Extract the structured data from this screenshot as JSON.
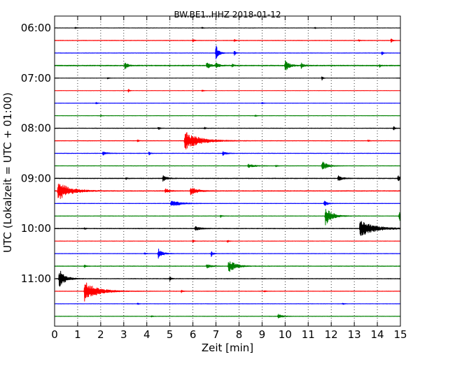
{
  "chart_data": {
    "type": "line",
    "title": "BW.BE1..HHZ 2018-01-12",
    "xlabel": "Zeit  [min]",
    "ylabel": "UTC (Lokalzeit = UTC + 01:00)",
    "xlim": [
      0,
      15
    ],
    "x_ticks": [
      0,
      1,
      2,
      3,
      4,
      5,
      6,
      7,
      8,
      9,
      10,
      11,
      12,
      13,
      14,
      15
    ],
    "x_tick_labels": [
      "0",
      "1",
      "2",
      "3",
      "4",
      "5",
      "6",
      "7",
      "8",
      "9",
      "10",
      "11",
      "12",
      "13",
      "14",
      "15"
    ],
    "y_tick_labels": [
      {
        "row": 0,
        "label": "06:00"
      },
      {
        "row": 4,
        "label": "07:00"
      },
      {
        "row": 8,
        "label": "08:00"
      },
      {
        "row": 12,
        "label": "09:00"
      },
      {
        "row": 16,
        "label": "10:00"
      },
      {
        "row": 20,
        "label": "11:00"
      }
    ],
    "grid": "vertical dotted",
    "color_cycle": [
      "#000000",
      "#ff0000",
      "#0000ff",
      "#008000"
    ],
    "row_interval_minutes": 15,
    "traces": [
      {
        "start": "06:00",
        "noise": 0.5,
        "events": [
          {
            "x": 0.9,
            "a": 1.2,
            "w": 0.05
          },
          {
            "x": 6.4,
            "a": 1.2,
            "w": 0.04
          },
          {
            "x": 11.3,
            "a": 1.0,
            "w": 0.04
          }
        ]
      },
      {
        "start": "06:15",
        "noise": 0.7,
        "events": [
          {
            "x": 6.0,
            "a": 2.0,
            "w": 0.05
          },
          {
            "x": 7.8,
            "a": 1.8,
            "w": 0.05
          },
          {
            "x": 13.2,
            "a": 1.6,
            "w": 0.05
          },
          {
            "x": 14.6,
            "a": 3.0,
            "w": 0.05
          }
        ]
      },
      {
        "start": "06:30",
        "noise": 0.6,
        "events": [
          {
            "x": 7.0,
            "a": 12.0,
            "w": 0.1
          },
          {
            "x": 7.8,
            "a": 4.0,
            "w": 0.05
          },
          {
            "x": 14.2,
            "a": 3.0,
            "w": 0.05
          }
        ]
      },
      {
        "start": "06:45",
        "noise": 1.3,
        "events": [
          {
            "x": 3.05,
            "a": 5.0,
            "w": 0.12
          },
          {
            "x": 6.6,
            "a": 4.5,
            "w": 0.15
          },
          {
            "x": 7.0,
            "a": 4.5,
            "w": 0.1
          },
          {
            "x": 7.7,
            "a": 2.5,
            "w": 0.06
          },
          {
            "x": 10.0,
            "a": 9.0,
            "w": 0.15
          },
          {
            "x": 10.7,
            "a": 4.0,
            "w": 0.1
          },
          {
            "x": 14.1,
            "a": 2.0,
            "w": 0.05
          }
        ]
      },
      {
        "start": "07:00",
        "noise": 0.4,
        "events": [
          {
            "x": 2.3,
            "a": 1.5,
            "w": 0.05
          },
          {
            "x": 11.6,
            "a": 3.0,
            "w": 0.04
          }
        ]
      },
      {
        "start": "07:15",
        "noise": 0.4,
        "events": [
          {
            "x": 3.2,
            "a": 3.0,
            "w": 0.04
          },
          {
            "x": 6.4,
            "a": 1.5,
            "w": 0.05
          }
        ]
      },
      {
        "start": "07:30",
        "noise": 0.5,
        "events": [
          {
            "x": 1.8,
            "a": 1.5,
            "w": 0.05
          },
          {
            "x": 9.0,
            "a": 1.2,
            "w": 0.05
          }
        ]
      },
      {
        "start": "07:45",
        "noise": 0.5,
        "events": [
          {
            "x": 8.7,
            "a": 2.0,
            "w": 0.05
          },
          {
            "x": 2.0,
            "a": 1.2,
            "w": 0.05
          }
        ]
      },
      {
        "start": "08:00",
        "noise": 0.7,
        "events": [
          {
            "x": 4.5,
            "a": 2.5,
            "w": 0.05
          },
          {
            "x": 6.5,
            "a": 1.5,
            "w": 0.06
          },
          {
            "x": 14.7,
            "a": 3.5,
            "w": 0.05
          }
        ]
      },
      {
        "start": "08:15",
        "noise": 0.7,
        "events": [
          {
            "x": 5.65,
            "a": 14.0,
            "w": 0.55
          },
          {
            "x": 3.6,
            "a": 1.5,
            "w": 0.05
          },
          {
            "x": 13.6,
            "a": 1.5,
            "w": 0.05
          }
        ]
      },
      {
        "start": "08:30",
        "noise": 0.7,
        "events": [
          {
            "x": 2.1,
            "a": 2.5,
            "w": 0.15
          },
          {
            "x": 4.1,
            "a": 2.5,
            "w": 0.05
          },
          {
            "x": 7.3,
            "a": 3.5,
            "w": 0.12
          }
        ]
      },
      {
        "start": "08:45",
        "noise": 0.6,
        "events": [
          {
            "x": 8.4,
            "a": 2.5,
            "w": 0.25
          },
          {
            "x": 11.6,
            "a": 7.0,
            "w": 0.2
          },
          {
            "x": 9.6,
            "a": 1.5,
            "w": 0.05
          }
        ]
      },
      {
        "start": "09:00",
        "noise": 1.0,
        "events": [
          {
            "x": 4.7,
            "a": 4.0,
            "w": 0.15
          },
          {
            "x": 3.1,
            "a": 2.0,
            "w": 0.05
          },
          {
            "x": 12.3,
            "a": 4.0,
            "w": 0.15
          },
          {
            "x": 14.9,
            "a": 4.0,
            "w": 0.1
          }
        ]
      },
      {
        "start": "09:15",
        "noise": 1.0,
        "events": [
          {
            "x": 0.15,
            "a": 14.0,
            "w": 0.45
          },
          {
            "x": 5.9,
            "a": 6.0,
            "w": 0.25
          },
          {
            "x": 4.8,
            "a": 3.0,
            "w": 0.15
          }
        ]
      },
      {
        "start": "09:30",
        "noise": 0.6,
        "events": [
          {
            "x": 5.05,
            "a": 5.0,
            "w": 0.35
          },
          {
            "x": 11.7,
            "a": 5.0,
            "w": 0.1
          }
        ]
      },
      {
        "start": "09:45",
        "noise": 0.6,
        "events": [
          {
            "x": 11.75,
            "a": 14.0,
            "w": 0.25
          },
          {
            "x": 14.95,
            "a": 8.0,
            "w": 0.2
          },
          {
            "x": 7.2,
            "a": 2.0,
            "w": 0.05
          }
        ]
      },
      {
        "start": "10:00",
        "noise": 0.9,
        "events": [
          {
            "x": 13.25,
            "a": 12.0,
            "w": 0.55
          },
          {
            "x": 6.1,
            "a": 3.0,
            "w": 0.2
          },
          {
            "x": 1.3,
            "a": 1.5,
            "w": 0.05
          }
        ]
      },
      {
        "start": "10:15",
        "noise": 0.5,
        "events": [
          {
            "x": 6.0,
            "a": 2.0,
            "w": 0.05
          },
          {
            "x": 7.5,
            "a": 2.0,
            "w": 0.05
          }
        ]
      },
      {
        "start": "10:30",
        "noise": 0.6,
        "events": [
          {
            "x": 4.5,
            "a": 8.0,
            "w": 0.15
          },
          {
            "x": 6.8,
            "a": 5.0,
            "w": 0.06
          },
          {
            "x": 3.9,
            "a": 1.5,
            "w": 0.05
          }
        ]
      },
      {
        "start": "10:45",
        "noise": 0.8,
        "events": [
          {
            "x": 7.55,
            "a": 10.0,
            "w": 0.25
          },
          {
            "x": 1.3,
            "a": 2.5,
            "w": 0.06
          },
          {
            "x": 6.6,
            "a": 3.0,
            "w": 0.15
          }
        ]
      },
      {
        "start": "11:00",
        "noise": 0.8,
        "events": [
          {
            "x": 0.2,
            "a": 14.0,
            "w": 0.22
          },
          {
            "x": 5.0,
            "a": 4.0,
            "w": 0.05
          }
        ]
      },
      {
        "start": "11:15",
        "noise": 0.6,
        "events": [
          {
            "x": 1.3,
            "a": 14.0,
            "w": 0.5
          },
          {
            "x": 5.5,
            "a": 2.0,
            "w": 0.05
          },
          {
            "x": 9.1,
            "a": 1.5,
            "w": 0.05
          }
        ]
      },
      {
        "start": "11:30",
        "noise": 0.5,
        "events": [
          {
            "x": 12.5,
            "a": 1.5,
            "w": 0.05
          },
          {
            "x": 3.6,
            "a": 1.2,
            "w": 0.05
          }
        ]
      },
      {
        "start": "11:45",
        "noise": 0.6,
        "events": [
          {
            "x": 9.7,
            "a": 3.0,
            "w": 0.15
          },
          {
            "x": 4.2,
            "a": 1.2,
            "w": 0.05
          }
        ]
      }
    ]
  }
}
